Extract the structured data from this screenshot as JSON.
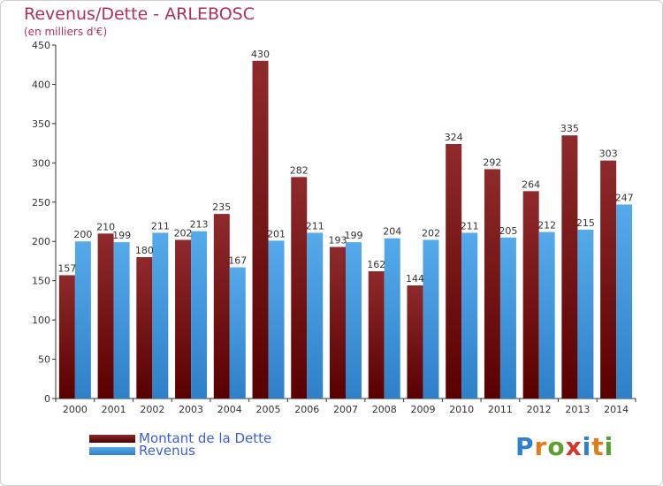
{
  "title": "Revenus/Dette - ARLEBOSC",
  "subtitle": "(en milliers d'€)",
  "colors": {
    "dette": "#7a0f12",
    "revenus": "#4a9fe0",
    "title": "#b0305a",
    "legend_text": "#3b5fd6"
  },
  "legend": {
    "dette_label": "Montant de la Dette",
    "revenus_label": "Revenus"
  },
  "logo": {
    "text": "Proxiti"
  },
  "chart_data": {
    "type": "bar",
    "title": "Revenus/Dette - ARLEBOSC",
    "ylabel": "(en milliers d'€)",
    "xlabel": "",
    "categories": [
      "2000",
      "2001",
      "2002",
      "2003",
      "2004",
      "2005",
      "2006",
      "2007",
      "2008",
      "2009",
      "2010",
      "2011",
      "2012",
      "2013",
      "2014"
    ],
    "series": [
      {
        "name": "Montant de la Dette",
        "values": [
          157,
          210,
          180,
          202,
          235,
          430,
          282,
          193,
          162,
          144,
          324,
          292,
          264,
          335,
          303
        ]
      },
      {
        "name": "Revenus",
        "values": [
          200,
          199,
          211,
          213,
          167,
          201,
          211,
          199,
          204,
          202,
          211,
          205,
          212,
          215,
          247
        ]
      }
    ],
    "ylim": [
      0,
      450
    ],
    "yticks": [
      0,
      50,
      100,
      150,
      200,
      250,
      300,
      350,
      400,
      450
    ],
    "grid": false,
    "legend_position": "bottom-left"
  }
}
